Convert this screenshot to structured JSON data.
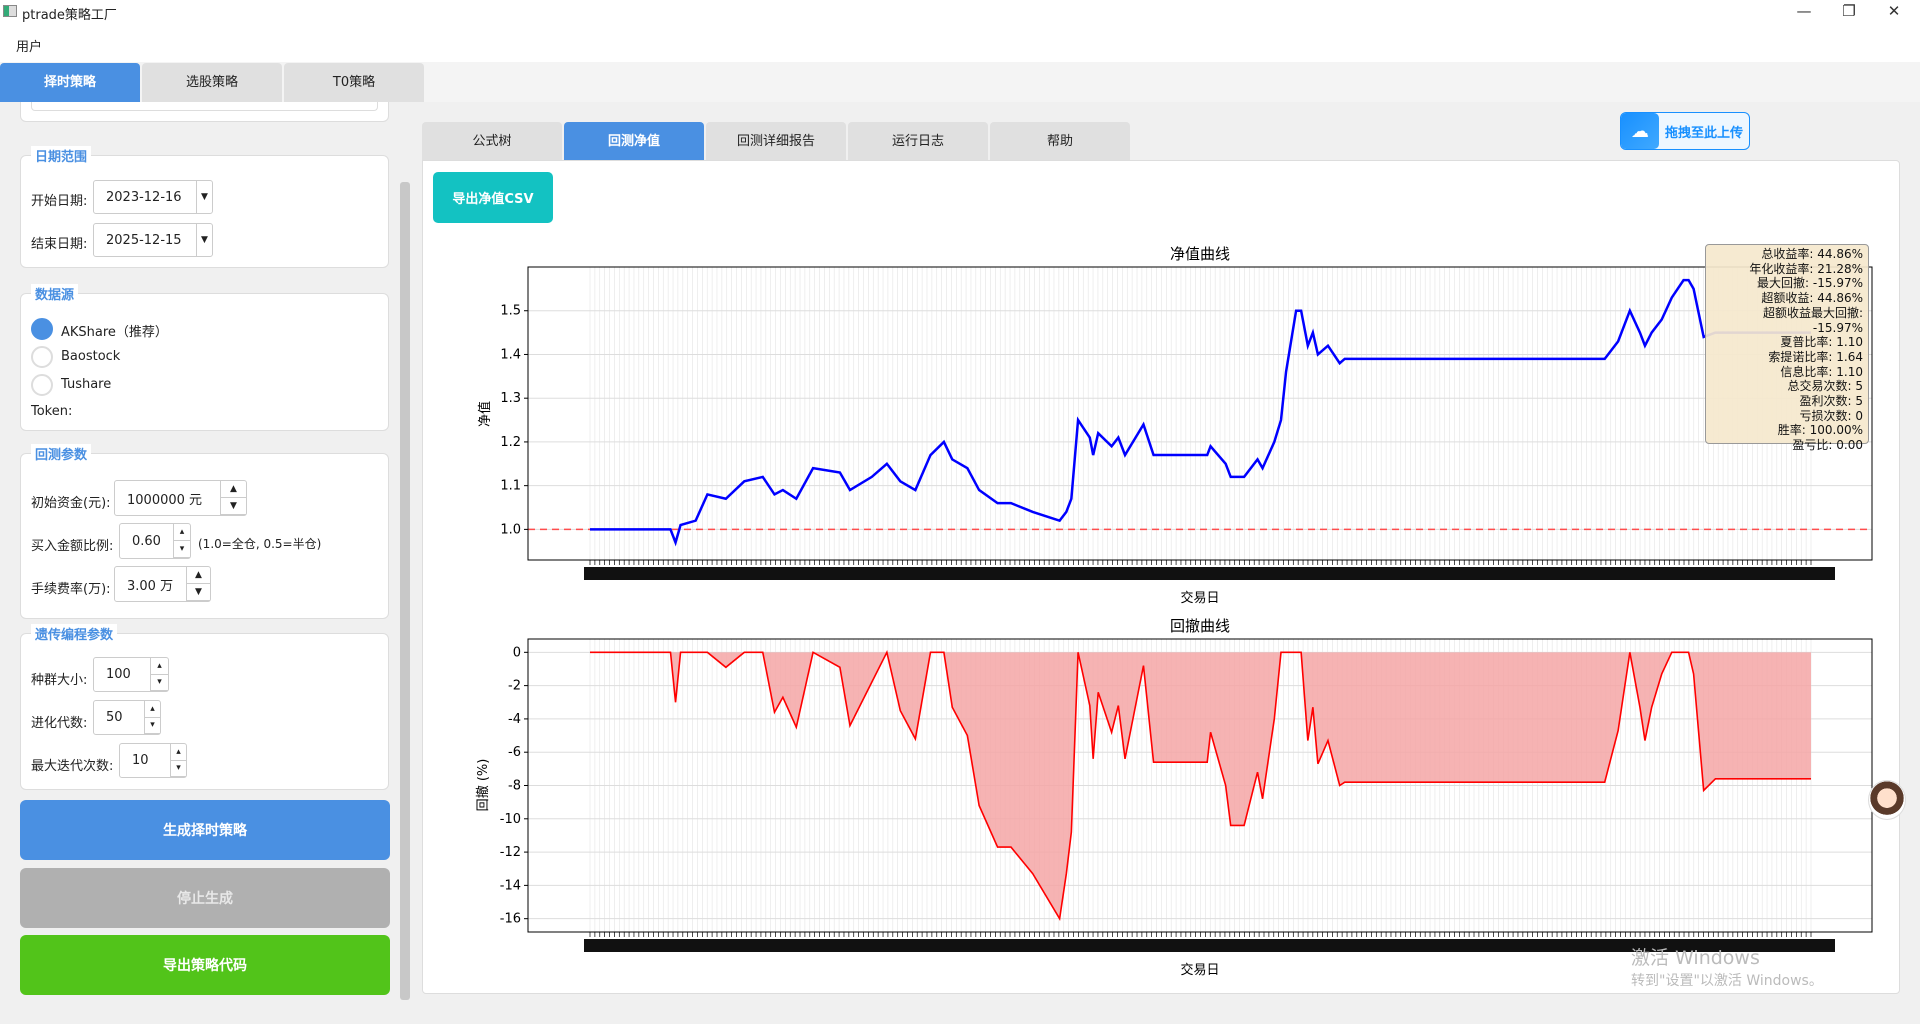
{
  "window": {
    "title": "ptrade策略工厂",
    "controls": [
      "—",
      "❐",
      "✕"
    ]
  },
  "menu": {
    "user": "用户"
  },
  "main_tabs": [
    {
      "label": "择时策略",
      "active": true
    },
    {
      "label": "选股策略"
    },
    {
      "label": "T0策略"
    }
  ],
  "sidebar": {
    "date_range": {
      "title": "日期范围",
      "start_label": "开始日期:",
      "start_value": "2023-12-16",
      "end_label": "结束日期:",
      "end_value": "2025-12-15"
    },
    "data_source": {
      "title": "数据源",
      "options": [
        {
          "label": "AKShare（推荐）",
          "selected": true
        },
        {
          "label": "Baostock",
          "selected": false
        },
        {
          "label": "Tushare",
          "selected": false
        }
      ],
      "token_label": "Token:"
    },
    "backtest": {
      "title": "回测参数",
      "capital_label": "初始资金(元):",
      "capital_value": "1000000 元",
      "ratio_label": "买入金额比例:",
      "ratio_value": "0.60",
      "ratio_hint": "(1.0=全仓, 0.5=半仓)",
      "fee_label": "手续费率(万):",
      "fee_value": "3.00 万"
    },
    "gp": {
      "title": "遗传编程参数",
      "pop_label": "种群大小:",
      "pop_value": "100",
      "gen_label": "进化代数:",
      "gen_value": "50",
      "iter_label": "最大迭代次数:",
      "iter_value": "10"
    },
    "buttons": {
      "generate": "生成择时策略",
      "stop": "停止生成",
      "export": "导出策略代码"
    },
    "colors": {
      "generate": "#4a90e2",
      "stop": "#b0b0b0",
      "export": "#52c41a"
    }
  },
  "sub_tabs": [
    {
      "label": "公式树"
    },
    {
      "label": "回测净值",
      "active": true
    },
    {
      "label": "回测详细报告"
    },
    {
      "label": "运行日志"
    },
    {
      "label": "帮助"
    }
  ],
  "toolbar": {
    "export_csv": "导出净值CSV",
    "upload": "拖拽至此上传",
    "upload_icon": "cloud-icon"
  },
  "metrics": [
    "总收益率: 44.86%",
    "年化收益率: 21.28%",
    "最大回撤: -15.97%",
    "超额收益: 44.86%",
    "超额收益最大回撤: -15.97%",
    "夏普比率: 1.10",
    "索提诺比率: 1.64",
    "信息比率: 1.10",
    "总交易次数: 5",
    "盈利次数: 5",
    "亏损次数: 0",
    "胜率: 100.00%",
    "盈亏比: 0.00"
  ],
  "watermark": {
    "line1": "激活 Windows",
    "line2": "转到\"设置\"以激活 Windows。"
  },
  "chart_data": [
    {
      "type": "line",
      "title": "净值曲线",
      "xlabel": "交易日",
      "ylabel": "净值",
      "ylim": [
        0.93,
        1.6
      ],
      "yticks": [
        1.0,
        1.1,
        1.2,
        1.3,
        1.4,
        1.5
      ],
      "xlim": [
        "2023-12-18",
        "2025-12-15"
      ],
      "grid": true,
      "line_color": "#0000ff",
      "baseline": {
        "value": 1.0,
        "color": "#ff4d4d",
        "style": "dashed"
      },
      "x": [
        "2023-12-18",
        "2024-02-04",
        "2024-02-07",
        "2024-02-10",
        "2024-02-19",
        "2024-02-26",
        "2024-03-08",
        "2024-03-19",
        "2024-03-30",
        "2024-04-06",
        "2024-04-11",
        "2024-04-19",
        "2024-04-29",
        "2024-05-15",
        "2024-05-21",
        "2024-06-03",
        "2024-06-12",
        "2024-06-20",
        "2024-06-29",
        "2024-07-08",
        "2024-07-16",
        "2024-07-21",
        "2024-07-30",
        "2024-08-06",
        "2024-08-17",
        "2024-08-25",
        "2024-09-07",
        "2024-09-23",
        "2024-09-27",
        "2024-09-30",
        "2024-10-04",
        "2024-10-11",
        "2024-10-13",
        "2024-10-16",
        "2024-10-24",
        "2024-10-28",
        "2024-11-01",
        "2024-11-12",
        "2024-11-18",
        "2024-12-20",
        "2024-12-22",
        "2024-12-31",
        "2025-01-03",
        "2025-01-11",
        "2025-01-19",
        "2025-01-22",
        "2025-01-29",
        "2025-02-02",
        "2025-02-05",
        "2025-02-11",
        "2025-02-14",
        "2025-02-18",
        "2025-02-21",
        "2025-02-24",
        "2025-03-02",
        "2025-03-09",
        "2025-03-12",
        "2025-08-14",
        "2025-08-22",
        "2025-08-29",
        "2025-09-04",
        "2025-09-07",
        "2025-09-11",
        "2025-09-17",
        "2025-09-23",
        "2025-09-30",
        "2025-10-03",
        "2025-10-06",
        "2025-10-12",
        "2025-10-19",
        "2025-12-15"
      ],
      "values": [
        1.0,
        1.0,
        0.97,
        1.01,
        1.02,
        1.08,
        1.07,
        1.11,
        1.12,
        1.08,
        1.09,
        1.07,
        1.14,
        1.13,
        1.09,
        1.12,
        1.15,
        1.11,
        1.09,
        1.17,
        1.2,
        1.16,
        1.14,
        1.09,
        1.06,
        1.06,
        1.04,
        1.02,
        1.04,
        1.07,
        1.25,
        1.21,
        1.17,
        1.22,
        1.19,
        1.21,
        1.17,
        1.24,
        1.17,
        1.17,
        1.19,
        1.15,
        1.12,
        1.12,
        1.16,
        1.14,
        1.2,
        1.25,
        1.36,
        1.5,
        1.5,
        1.42,
        1.45,
        1.4,
        1.42,
        1.38,
        1.39,
        1.39,
        1.43,
        1.5,
        1.45,
        1.42,
        1.45,
        1.48,
        1.53,
        1.57,
        1.57,
        1.55,
        1.44,
        1.45,
        1.45
      ]
    },
    {
      "type": "area",
      "title": "回撤曲线",
      "xlabel": "交易日",
      "ylabel": "回撤 (%)",
      "ylim": [
        -16.8,
        0.8
      ],
      "yticks": [
        0,
        -2,
        -4,
        -6,
        -8,
        -10,
        -12,
        -14,
        -16
      ],
      "xlim": [
        "2023-12-18",
        "2025-12-15"
      ],
      "grid": true,
      "line_color": "#ff0000",
      "fill_color": "#f4a6a6",
      "values": [
        0,
        0,
        -3,
        0,
        0,
        0,
        -0.9,
        0,
        0,
        -3.6,
        -2.7,
        -4.5,
        0,
        -0.9,
        -4.4,
        -1.8,
        0,
        -3.5,
        -5.2,
        0,
        0,
        -3.3,
        -5,
        -9.2,
        -11.7,
        -11.7,
        -13.3,
        -16,
        -13.3,
        -10.8,
        0,
        -3.2,
        -6.4,
        -2.4,
        -4.8,
        -3.2,
        -6.4,
        -0.8,
        -6.6,
        -6.6,
        -4.8,
        -8,
        -10.4,
        -10.4,
        -7.2,
        -8.8,
        -4,
        0,
        0,
        0,
        0,
        -5.3,
        -3.3,
        -6.7,
        -5.3,
        -8,
        -7.8,
        -7.8,
        -4.7,
        0,
        -3.3,
        -5.3,
        -3.3,
        -1.3,
        0,
        0,
        0,
        -1.3,
        -8.3,
        -7.6,
        -7.6
      ]
    }
  ]
}
